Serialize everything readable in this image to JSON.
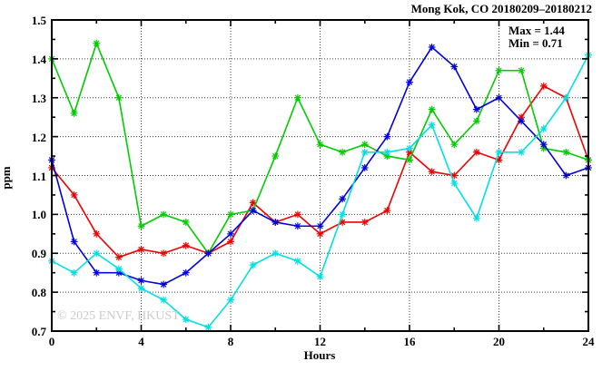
{
  "header": {
    "title": "Mong Kok, CO 20180209–20180212"
  },
  "annotation": {
    "max_label": "Max = 1.44",
    "min_label": "Min = 0.71"
  },
  "watermark": "© 2025 ENVF, HKUST",
  "chart_data": {
    "type": "line",
    "title": "Mong Kok, CO 20180209–20180212",
    "xlabel": "Hours",
    "ylabel": "ppm",
    "xlim": [
      0,
      24
    ],
    "ylim": [
      0.7,
      1.5
    ],
    "grid": true,
    "legend": "none",
    "x_tick_labels": [
      "0",
      "4",
      "8",
      "12",
      "16",
      "20",
      "24"
    ],
    "x_tick_values": [
      0,
      4,
      8,
      12,
      16,
      20,
      24
    ],
    "x_minor_tick_values": [
      2,
      6,
      10,
      14,
      18,
      22
    ],
    "y_tick_labels": [
      "0.7",
      "0.8",
      "0.9",
      "1.0",
      "1.1",
      "1.2",
      "1.3",
      "1.4",
      "1.5"
    ],
    "y_tick_values": [
      0.7,
      0.8,
      0.9,
      1.0,
      1.1,
      1.2,
      1.3,
      1.4,
      1.5
    ],
    "y_minor_tick_values": [
      0.75,
      0.85,
      0.95,
      1.05,
      1.15,
      1.25,
      1.35,
      1.45
    ],
    "x": [
      0,
      1,
      2,
      3,
      4,
      5,
      6,
      7,
      8,
      9,
      10,
      11,
      12,
      13,
      14,
      15,
      16,
      17,
      18,
      19,
      20,
      21,
      22,
      23,
      24
    ],
    "series": [
      {
        "name": "series-red",
        "color": "#ee0000",
        "values": [
          1.12,
          1.05,
          0.95,
          0.89,
          0.91,
          0.9,
          0.92,
          0.9,
          0.93,
          1.03,
          0.98,
          1.0,
          0.95,
          0.98,
          0.98,
          1.01,
          1.16,
          1.11,
          1.1,
          1.16,
          1.14,
          1.25,
          1.33,
          1.3,
          1.14
        ]
      },
      {
        "name": "series-green",
        "color": "#00cc00",
        "values": [
          1.4,
          1.26,
          1.44,
          1.3,
          0.97,
          1.0,
          0.98,
          0.9,
          1.0,
          1.01,
          1.15,
          1.3,
          1.18,
          1.16,
          1.18,
          1.15,
          1.14,
          1.27,
          1.18,
          1.24,
          1.37,
          1.37,
          1.17,
          1.16,
          1.14
        ]
      },
      {
        "name": "series-blue",
        "color": "#0000dd",
        "values": [
          1.14,
          0.93,
          0.85,
          0.85,
          0.83,
          0.82,
          0.85,
          0.9,
          0.95,
          1.01,
          0.98,
          0.97,
          0.97,
          1.04,
          1.12,
          1.2,
          1.34,
          1.43,
          1.38,
          1.27,
          1.3,
          1.24,
          1.18,
          1.1,
          1.12
        ]
      },
      {
        "name": "series-cyan",
        "color": "#00e0e0",
        "values": [
          0.88,
          0.85,
          0.9,
          0.86,
          0.81,
          0.78,
          0.73,
          0.71,
          0.78,
          0.87,
          0.9,
          0.88,
          0.84,
          1.0,
          1.16,
          1.16,
          1.17,
          1.23,
          1.08,
          0.99,
          1.16,
          1.16,
          1.22,
          1.3,
          1.41
        ]
      }
    ],
    "stats": {
      "max": 1.44,
      "min": 0.71
    }
  }
}
